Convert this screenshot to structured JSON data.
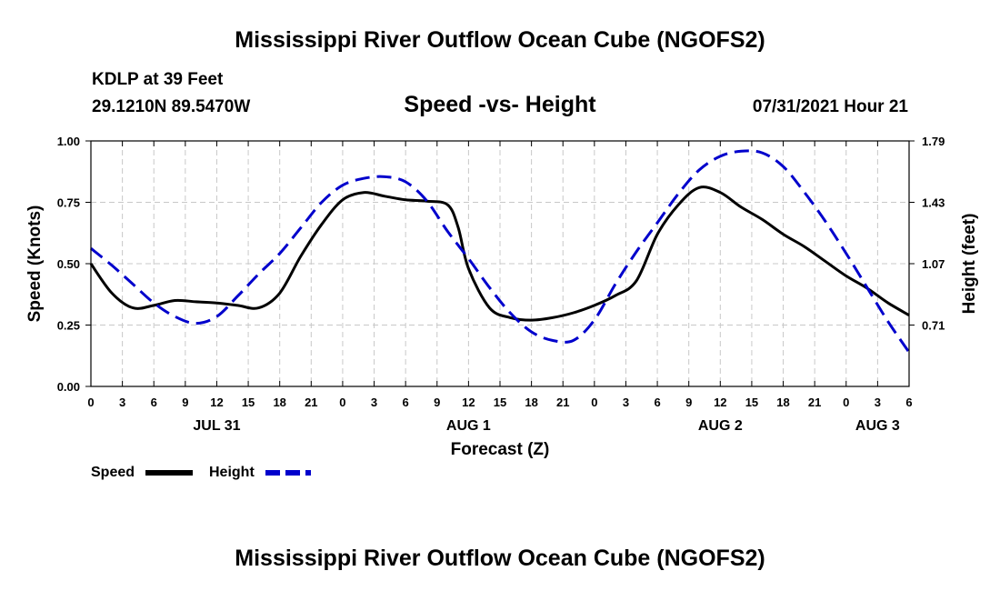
{
  "header": {
    "title": "Mississippi River Outflow Ocean Cube (NGOFS2)",
    "station": "KDLP at 39 Feet",
    "coords": "29.1210N  89.5470W",
    "subtitle": "Speed -vs- Height",
    "datetime": "07/31/2021 Hour 21"
  },
  "footer": {
    "title": "Mississippi River Outflow Ocean Cube (NGOFS2)"
  },
  "chart_data": {
    "type": "line",
    "title": "Speed -vs- Height",
    "xlabel": "Forecast (Z)",
    "ylabel": "Speed (Knots)",
    "y2label": "Height (feet)",
    "xlim": [
      0,
      78
    ],
    "ylim": [
      0,
      1.0
    ],
    "y2lim": [
      0.35,
      1.79
    ],
    "grid": true,
    "x_ticks": [
      0,
      3,
      6,
      9,
      12,
      15,
      18,
      21,
      24,
      27,
      30,
      33,
      36,
      39,
      42,
      45,
      48,
      51,
      54,
      57,
      60,
      63,
      66,
      69,
      72,
      75,
      78
    ],
    "x_tick_labels": [
      "0",
      "3",
      "6",
      "9",
      "12",
      "15",
      "18",
      "21",
      "0",
      "3",
      "6",
      "9",
      "12",
      "15",
      "18",
      "21",
      "0",
      "3",
      "6",
      "9",
      "12",
      "15",
      "18",
      "21",
      "0",
      "3",
      "6"
    ],
    "y_ticks": [
      0,
      0.25,
      0.5,
      0.75,
      1.0
    ],
    "y_tick_labels": [
      "0.00",
      "0.25",
      "0.50",
      "0.75",
      "1.00"
    ],
    "y2_ticks": [
      0.71,
      1.07,
      1.43,
      1.79
    ],
    "y2_tick_labels": [
      "0.71",
      "1.07",
      "1.43",
      "1.79"
    ],
    "day_labels": [
      {
        "x": 12,
        "label": "JUL 31"
      },
      {
        "x": 36,
        "label": "AUG 1"
      },
      {
        "x": 60,
        "label": "AUG 2"
      },
      {
        "x": 75,
        "label": "AUG 3"
      }
    ],
    "legend": [
      {
        "name": "Speed",
        "color": "#000000",
        "style": "solid"
      },
      {
        "name": "Height",
        "color": "#0000cc",
        "style": "dashed"
      }
    ],
    "series": [
      {
        "name": "Speed",
        "axis": "left",
        "color": "#000000",
        "style": "solid",
        "x": [
          0,
          2,
          4,
          6,
          8,
          10,
          12,
          14,
          16,
          18,
          20,
          22,
          24,
          26,
          28,
          30,
          32,
          34,
          35,
          36,
          38,
          40,
          42,
          44,
          46,
          48,
          50,
          52,
          54,
          56,
          58,
          60,
          62,
          64,
          66,
          68,
          70,
          72,
          74,
          76,
          78
        ],
        "values": [
          0.5,
          0.38,
          0.32,
          0.33,
          0.35,
          0.345,
          0.34,
          0.33,
          0.32,
          0.38,
          0.53,
          0.66,
          0.76,
          0.79,
          0.775,
          0.76,
          0.755,
          0.74,
          0.65,
          0.48,
          0.32,
          0.28,
          0.27,
          0.28,
          0.3,
          0.33,
          0.37,
          0.43,
          0.62,
          0.74,
          0.81,
          0.79,
          0.73,
          0.68,
          0.62,
          0.57,
          0.51,
          0.45,
          0.4,
          0.34,
          0.29
        ]
      },
      {
        "name": "Height",
        "axis": "right",
        "color": "#0000cc",
        "style": "dashed",
        "x": [
          0,
          2,
          4,
          6,
          8,
          10,
          12,
          14,
          16,
          18,
          20,
          22,
          24,
          26,
          28,
          30,
          32,
          34,
          36,
          38,
          40,
          42,
          44,
          46,
          48,
          50,
          52,
          54,
          56,
          58,
          60,
          62,
          64,
          66,
          68,
          70,
          72,
          74,
          76,
          78
        ],
        "values": [
          1.16,
          1.06,
          0.95,
          0.84,
          0.76,
          0.72,
          0.76,
          0.88,
          1.01,
          1.13,
          1.28,
          1.43,
          1.53,
          1.57,
          1.58,
          1.55,
          1.44,
          1.26,
          1.1,
          0.93,
          0.78,
          0.67,
          0.62,
          0.62,
          0.74,
          0.95,
          1.14,
          1.31,
          1.48,
          1.62,
          1.7,
          1.73,
          1.72,
          1.64,
          1.49,
          1.32,
          1.13,
          0.93,
          0.73,
          0.55
        ]
      }
    ]
  }
}
